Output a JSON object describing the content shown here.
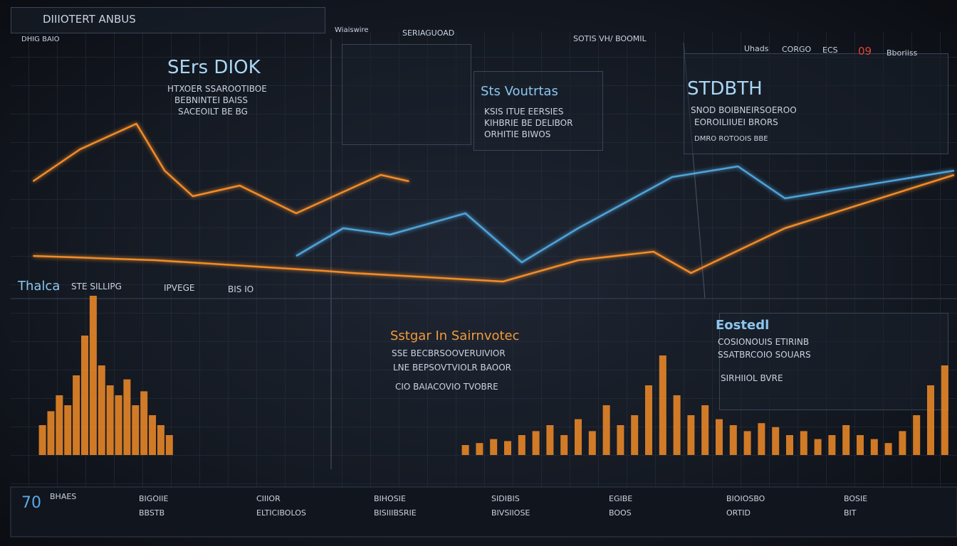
{
  "header": {
    "title": "DIIIOTERT ANBUS",
    "sub": "DHIG BAIO",
    "tabs": [
      "Wiaiswire",
      "SERIAGUOAD",
      "SOTIS VH/ BOOMIL",
      "Uhads",
      "CORGO",
      "ECS",
      "09",
      "Bboriiss"
    ]
  },
  "panels": [
    {
      "title": "SErs DIOK",
      "lines": [
        "HTXOER  SSAROOTIBOE",
        "BEBNINTEI  BAISS",
        "SACEOILT  BE BG"
      ]
    },
    {
      "title": "Sts Voutrtas",
      "lines": [
        "KSIS ITUE EERSIES",
        "KIHBRIE BE DELIBOR",
        "ORHITIE BIWOS"
      ]
    },
    {
      "title": "STDBTH",
      "lines": [
        "SNOD  BOIBNEIRSOEROO",
        "EOROILIIUEI BRORS",
        "DMRO ROTOOIS BBE"
      ]
    },
    {
      "title": "Sstgar In Sairnvotec",
      "lines": [
        "SSE BECBRSOOVERUIVIOR",
        "LNE BEPSOVTVIOLR BAOOR",
        "CIO BAIACOVIO TVOBRE"
      ]
    },
    {
      "title": "Eostedl",
      "lines": [
        "COSIONOUIS ETIRINB",
        "SSATBRCOIO SOUARS",
        "SIRHIIOL BVRE"
      ]
    }
  ],
  "mid_labels": [
    "Thalca",
    "STE SILLIPG",
    "IPVEGE",
    "BIS IO"
  ],
  "footer": [
    {
      "title": "70",
      "text": "BHAES"
    },
    {
      "title": "BIGOIIE",
      "text": "BBSTB"
    },
    {
      "title": "CIIIOR",
      "text": "ELTICIBOLOS"
    },
    {
      "title": "BIHOSIE",
      "text": "BISIIIBSRIE"
    },
    {
      "title": "SIDIBIS",
      "text": "BIVSIIOSE"
    },
    {
      "title": "EGIBE",
      "text": "BOOS"
    },
    {
      "title": "BIOIOSBO",
      "text": "ORTID"
    },
    {
      "title": "BOSIE",
      "text": "BIT"
    }
  ],
  "line_chart": {
    "xlim": [
      0,
      100
    ],
    "ylim": [
      0,
      100
    ],
    "series": [
      {
        "color": "#f28c28",
        "x": [
          2,
          7,
          13,
          16,
          19,
          24,
          30,
          35,
          39,
          42
        ],
        "values": [
          65,
          80,
          92,
          70,
          58,
          63,
          50,
          60,
          68,
          65
        ]
      },
      {
        "color": "#4fa3d9",
        "x": [
          30,
          35,
          40,
          48,
          54,
          60,
          70,
          77,
          82,
          100
        ],
        "values": [
          30,
          43,
          40,
          50,
          27,
          43,
          67,
          72,
          57,
          70
        ]
      },
      {
        "color": "#f28c28",
        "x": [
          2,
          15,
          33,
          36,
          52,
          60,
          68,
          72,
          82,
          100
        ],
        "values": [
          30,
          28,
          23,
          22,
          18,
          28,
          32,
          22,
          43,
          68
        ]
      }
    ]
  },
  "bar_chart": {
    "xlim": [
      0,
      100
    ],
    "ylim": [
      0,
      100
    ],
    "color": "#f28c28",
    "x": [
      3,
      3.9,
      4.8,
      5.7,
      6.6,
      7.5,
      8.4,
      9.3,
      10.2,
      11.1,
      12,
      12.9,
      13.8,
      14.7,
      15.6,
      16.5,
      48,
      49.5,
      51,
      52.5,
      54,
      55.5,
      57,
      58.5,
      60,
      61.5,
      63,
      64.5,
      66,
      67.5,
      69,
      70.5,
      72,
      73.5,
      75,
      76.5,
      78,
      79.5,
      81,
      82.5,
      84,
      85.5,
      87,
      88.5,
      90,
      91.5,
      93,
      94.5,
      96,
      97.5,
      99
    ],
    "values": [
      15,
      22,
      30,
      25,
      40,
      60,
      80,
      45,
      35,
      30,
      38,
      25,
      32,
      20,
      15,
      10,
      5,
      6,
      8,
      7,
      10,
      12,
      15,
      10,
      18,
      12,
      25,
      15,
      20,
      35,
      50,
      30,
      20,
      25,
      18,
      15,
      12,
      16,
      14,
      10,
      12,
      8,
      10,
      15,
      10,
      8,
      6,
      12,
      20,
      35,
      45
    ]
  }
}
